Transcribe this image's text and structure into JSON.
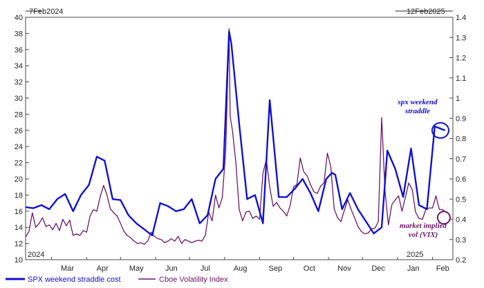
{
  "chart_data": {
    "type": "line",
    "start_label": "7Feb2024",
    "end_label": "12Feb2025",
    "x_ticks": [
      "Mar",
      "Apr",
      "May",
      "Jun",
      "Jul",
      "Aug",
      "Sep",
      "Oct",
      "Nov",
      "Dec",
      "Jan",
      "Feb"
    ],
    "year_labels": [
      "2024",
      "2025"
    ],
    "y_left": {
      "min": 10,
      "max": 40,
      "ticks": [
        10,
        12,
        14,
        16,
        18,
        20,
        22,
        24,
        26,
        28,
        30,
        32,
        34,
        36,
        38,
        40
      ]
    },
    "y_right": {
      "min": 0.2,
      "max": 1.4,
      "ticks": [
        "0.2",
        "0.3",
        "0.4",
        "0.5",
        "0.6",
        "0.7",
        "0.8",
        "0.9",
        "1",
        "1.1",
        "1.2",
        "1.3",
        "1.4"
      ]
    },
    "series": [
      {
        "name": "SPX weekend straddle cost",
        "axis": "right",
        "color": "#1010d0",
        "points": [
          [
            "2024-02-07",
            0.46
          ],
          [
            "2024-02-14",
            0.455
          ],
          [
            "2024-02-21",
            0.47
          ],
          [
            "2024-02-28",
            0.45
          ],
          [
            "2024-03-06",
            0.5
          ],
          [
            "2024-03-13",
            0.525
          ],
          [
            "2024-03-20",
            0.44
          ],
          [
            "2024-03-27",
            0.52
          ],
          [
            "2024-04-03",
            0.57
          ],
          [
            "2024-04-10",
            0.71
          ],
          [
            "2024-04-17",
            0.69
          ],
          [
            "2024-04-24",
            0.5
          ],
          [
            "2024-05-01",
            0.495
          ],
          [
            "2024-05-08",
            0.42
          ],
          [
            "2024-05-15",
            0.38
          ],
          [
            "2024-05-22",
            0.35
          ],
          [
            "2024-05-29",
            0.32
          ],
          [
            "2024-06-05",
            0.48
          ],
          [
            "2024-06-12",
            0.465
          ],
          [
            "2024-06-19",
            0.44
          ],
          [
            "2024-06-26",
            0.45
          ],
          [
            "2024-07-03",
            0.5
          ],
          [
            "2024-07-10",
            0.38
          ],
          [
            "2024-07-17",
            0.42
          ],
          [
            "2024-07-24",
            0.6
          ],
          [
            "2024-07-31",
            0.65
          ],
          [
            "2024-08-05",
            1.33
          ],
          [
            "2024-08-07",
            1.27
          ],
          [
            "2024-08-14",
            0.87
          ],
          [
            "2024-08-21",
            0.5
          ],
          [
            "2024-08-28",
            0.52
          ],
          [
            "2024-09-04",
            0.38
          ],
          [
            "2024-09-10",
            0.99
          ],
          [
            "2024-09-18",
            0.51
          ],
          [
            "2024-09-25",
            0.51
          ],
          [
            "2024-10-02",
            0.55
          ],
          [
            "2024-10-09",
            0.6
          ],
          [
            "2024-10-16",
            0.53
          ],
          [
            "2024-10-23",
            0.44
          ],
          [
            "2024-10-30",
            0.6
          ],
          [
            "2024-11-04",
            0.63
          ],
          [
            "2024-11-07",
            0.62
          ],
          [
            "2024-11-13",
            0.45
          ],
          [
            "2024-11-20",
            0.53
          ],
          [
            "2024-11-27",
            0.45
          ],
          [
            "2024-12-04",
            0.39
          ],
          [
            "2024-12-11",
            0.33
          ],
          [
            "2024-12-18",
            0.36
          ],
          [
            "2024-12-23",
            0.74
          ],
          [
            "2024-12-30",
            0.65
          ],
          [
            "2025-01-06",
            0.51
          ],
          [
            "2025-01-13",
            0.75
          ],
          [
            "2025-01-20",
            0.47
          ],
          [
            "2025-01-27",
            0.45
          ],
          [
            "2025-02-03",
            0.86
          ],
          [
            "2025-02-12",
            0.84
          ]
        ]
      },
      {
        "name": "Cboe Volatility Index",
        "axis": "left",
        "color": "#6a1666",
        "points": [
          [
            "2024-02-07",
            12.8
          ],
          [
            "2024-02-10",
            13.5
          ],
          [
            "2024-02-13",
            15.8
          ],
          [
            "2024-02-16",
            14.0
          ],
          [
            "2024-02-19",
            14.5
          ],
          [
            "2024-02-22",
            15.2
          ],
          [
            "2024-02-25",
            14.1
          ],
          [
            "2024-02-28",
            14.3
          ],
          [
            "2024-03-02",
            13.7
          ],
          [
            "2024-03-05",
            14.5
          ],
          [
            "2024-03-08",
            13.6
          ],
          [
            "2024-03-11",
            15.0
          ],
          [
            "2024-03-14",
            14.2
          ],
          [
            "2024-03-17",
            14.9
          ],
          [
            "2024-03-20",
            13.0
          ],
          [
            "2024-03-23",
            13.2
          ],
          [
            "2024-03-26",
            13.0
          ],
          [
            "2024-03-29",
            13.6
          ],
          [
            "2024-04-01",
            13.4
          ],
          [
            "2024-04-04",
            15.4
          ],
          [
            "2024-04-07",
            16.2
          ],
          [
            "2024-04-10",
            16.0
          ],
          [
            "2024-04-13",
            17.8
          ],
          [
            "2024-04-16",
            19.2
          ],
          [
            "2024-04-19",
            18.0
          ],
          [
            "2024-04-22",
            16.3
          ],
          [
            "2024-04-25",
            15.8
          ],
          [
            "2024-04-28",
            15.4
          ],
          [
            "2024-05-01",
            14.5
          ],
          [
            "2024-05-04",
            13.5
          ],
          [
            "2024-05-07",
            13.0
          ],
          [
            "2024-05-10",
            12.7
          ],
          [
            "2024-05-13",
            12.3
          ],
          [
            "2024-05-16",
            12.0
          ],
          [
            "2024-05-19",
            12.1
          ],
          [
            "2024-05-22",
            11.9
          ],
          [
            "2024-05-25",
            12.3
          ],
          [
            "2024-05-28",
            13.4
          ],
          [
            "2024-05-31",
            12.9
          ],
          [
            "2024-06-03",
            12.6
          ],
          [
            "2024-06-06",
            12.5
          ],
          [
            "2024-06-09",
            12.1
          ],
          [
            "2024-06-12",
            12.3
          ],
          [
            "2024-06-15",
            12.6
          ],
          [
            "2024-06-18",
            12.3
          ],
          [
            "2024-06-21",
            12.9
          ],
          [
            "2024-06-24",
            12.0
          ],
          [
            "2024-06-27",
            12.5
          ],
          [
            "2024-06-30",
            12.3
          ],
          [
            "2024-07-03",
            12.1
          ],
          [
            "2024-07-06",
            12.3
          ],
          [
            "2024-07-09",
            12.4
          ],
          [
            "2024-07-12",
            12.3
          ],
          [
            "2024-07-15",
            13.0
          ],
          [
            "2024-07-18",
            15.9
          ],
          [
            "2024-07-21",
            14.8
          ],
          [
            "2024-07-24",
            18.0
          ],
          [
            "2024-07-27",
            16.4
          ],
          [
            "2024-07-30",
            17.7
          ],
          [
            "2024-08-02",
            23.4
          ],
          [
            "2024-08-05",
            38.6
          ],
          [
            "2024-08-06",
            27.7
          ],
          [
            "2024-08-08",
            26.0
          ],
          [
            "2024-08-11",
            22.0
          ],
          [
            "2024-08-14",
            16.2
          ],
          [
            "2024-08-17",
            14.8
          ],
          [
            "2024-08-20",
            15.9
          ],
          [
            "2024-08-23",
            16.0
          ],
          [
            "2024-08-26",
            15.1
          ],
          [
            "2024-08-29",
            15.4
          ],
          [
            "2024-09-01",
            15.0
          ],
          [
            "2024-09-04",
            20.7
          ],
          [
            "2024-09-07",
            22.4
          ],
          [
            "2024-09-10",
            19.0
          ],
          [
            "2024-09-13",
            16.6
          ],
          [
            "2024-09-16",
            17.1
          ],
          [
            "2024-09-19",
            16.4
          ],
          [
            "2024-09-22",
            16.0
          ],
          [
            "2024-09-25",
            15.4
          ],
          [
            "2024-09-28",
            16.7
          ],
          [
            "2024-10-01",
            19.0
          ],
          [
            "2024-10-04",
            19.3
          ],
          [
            "2024-10-07",
            22.6
          ],
          [
            "2024-10-10",
            20.9
          ],
          [
            "2024-10-13",
            20.4
          ],
          [
            "2024-10-16",
            19.3
          ],
          [
            "2024-10-19",
            18.4
          ],
          [
            "2024-10-22",
            18.2
          ],
          [
            "2024-10-25",
            19.1
          ],
          [
            "2024-10-28",
            19.5
          ],
          [
            "2024-10-31",
            23.2
          ],
          [
            "2024-11-03",
            21.5
          ],
          [
            "2024-11-06",
            16.3
          ],
          [
            "2024-11-09",
            15.2
          ],
          [
            "2024-11-12",
            14.7
          ],
          [
            "2024-11-15",
            16.1
          ],
          [
            "2024-11-18",
            17.4
          ],
          [
            "2024-11-21",
            16.2
          ],
          [
            "2024-11-24",
            15.2
          ],
          [
            "2024-11-27",
            14.1
          ],
          [
            "2024-11-30",
            13.5
          ],
          [
            "2024-12-03",
            13.2
          ],
          [
            "2024-12-06",
            13.3
          ],
          [
            "2024-12-09",
            13.8
          ],
          [
            "2024-12-12",
            13.9
          ],
          [
            "2024-12-15",
            14.7
          ],
          [
            "2024-12-18",
            27.6
          ],
          [
            "2024-12-21",
            18.4
          ],
          [
            "2024-12-24",
            14.3
          ],
          [
            "2024-12-27",
            16.8
          ],
          [
            "2024-12-30",
            17.4
          ],
          [
            "2025-01-02",
            17.9
          ],
          [
            "2025-01-05",
            16.0
          ],
          [
            "2025-01-08",
            17.7
          ],
          [
            "2025-01-11",
            19.5
          ],
          [
            "2025-01-14",
            18.7
          ],
          [
            "2025-01-17",
            15.9
          ],
          [
            "2025-01-20",
            15.1
          ],
          [
            "2025-01-23",
            15.0
          ],
          [
            "2025-01-26",
            16.2
          ],
          [
            "2025-01-29",
            16.4
          ],
          [
            "2025-02-01",
            16.4
          ],
          [
            "2025-02-04",
            17.9
          ],
          [
            "2025-02-07",
            16.2
          ],
          [
            "2025-02-10",
            16.2
          ],
          [
            "2025-02-12",
            15.9
          ]
        ]
      }
    ],
    "annotations": [
      {
        "text_lines": [
          "spx weekend",
          "straddle"
        ],
        "color": "#1010d0",
        "target_series": 0,
        "target_date": "2025-02-12"
      },
      {
        "text_lines": [
          "market implied",
          "vol  (VIX)"
        ],
        "color": "#6a1666",
        "target_series": 1,
        "target_date": "2025-02-12"
      }
    ],
    "legend_position": "bottom-left",
    "grid": false
  }
}
